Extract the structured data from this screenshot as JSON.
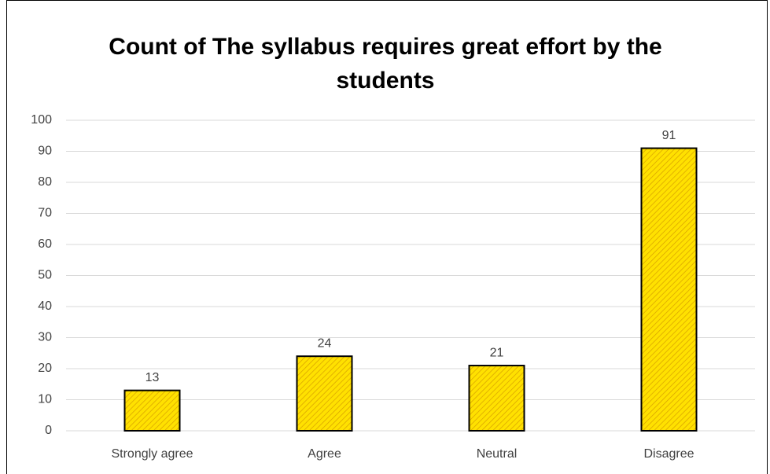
{
  "chart_data": {
    "type": "bar",
    "title": "Count of The syllabus requires great effort by the students",
    "categories": [
      "Strongly agree",
      "Agree",
      "Neutral",
      "Disagree"
    ],
    "values": [
      13,
      24,
      21,
      91
    ],
    "color": "#ffe100",
    "ylim": [
      0,
      100
    ],
    "yticks": [
      0,
      10,
      20,
      30,
      40,
      50,
      60,
      70,
      80,
      90,
      100
    ],
    "grid": true
  }
}
